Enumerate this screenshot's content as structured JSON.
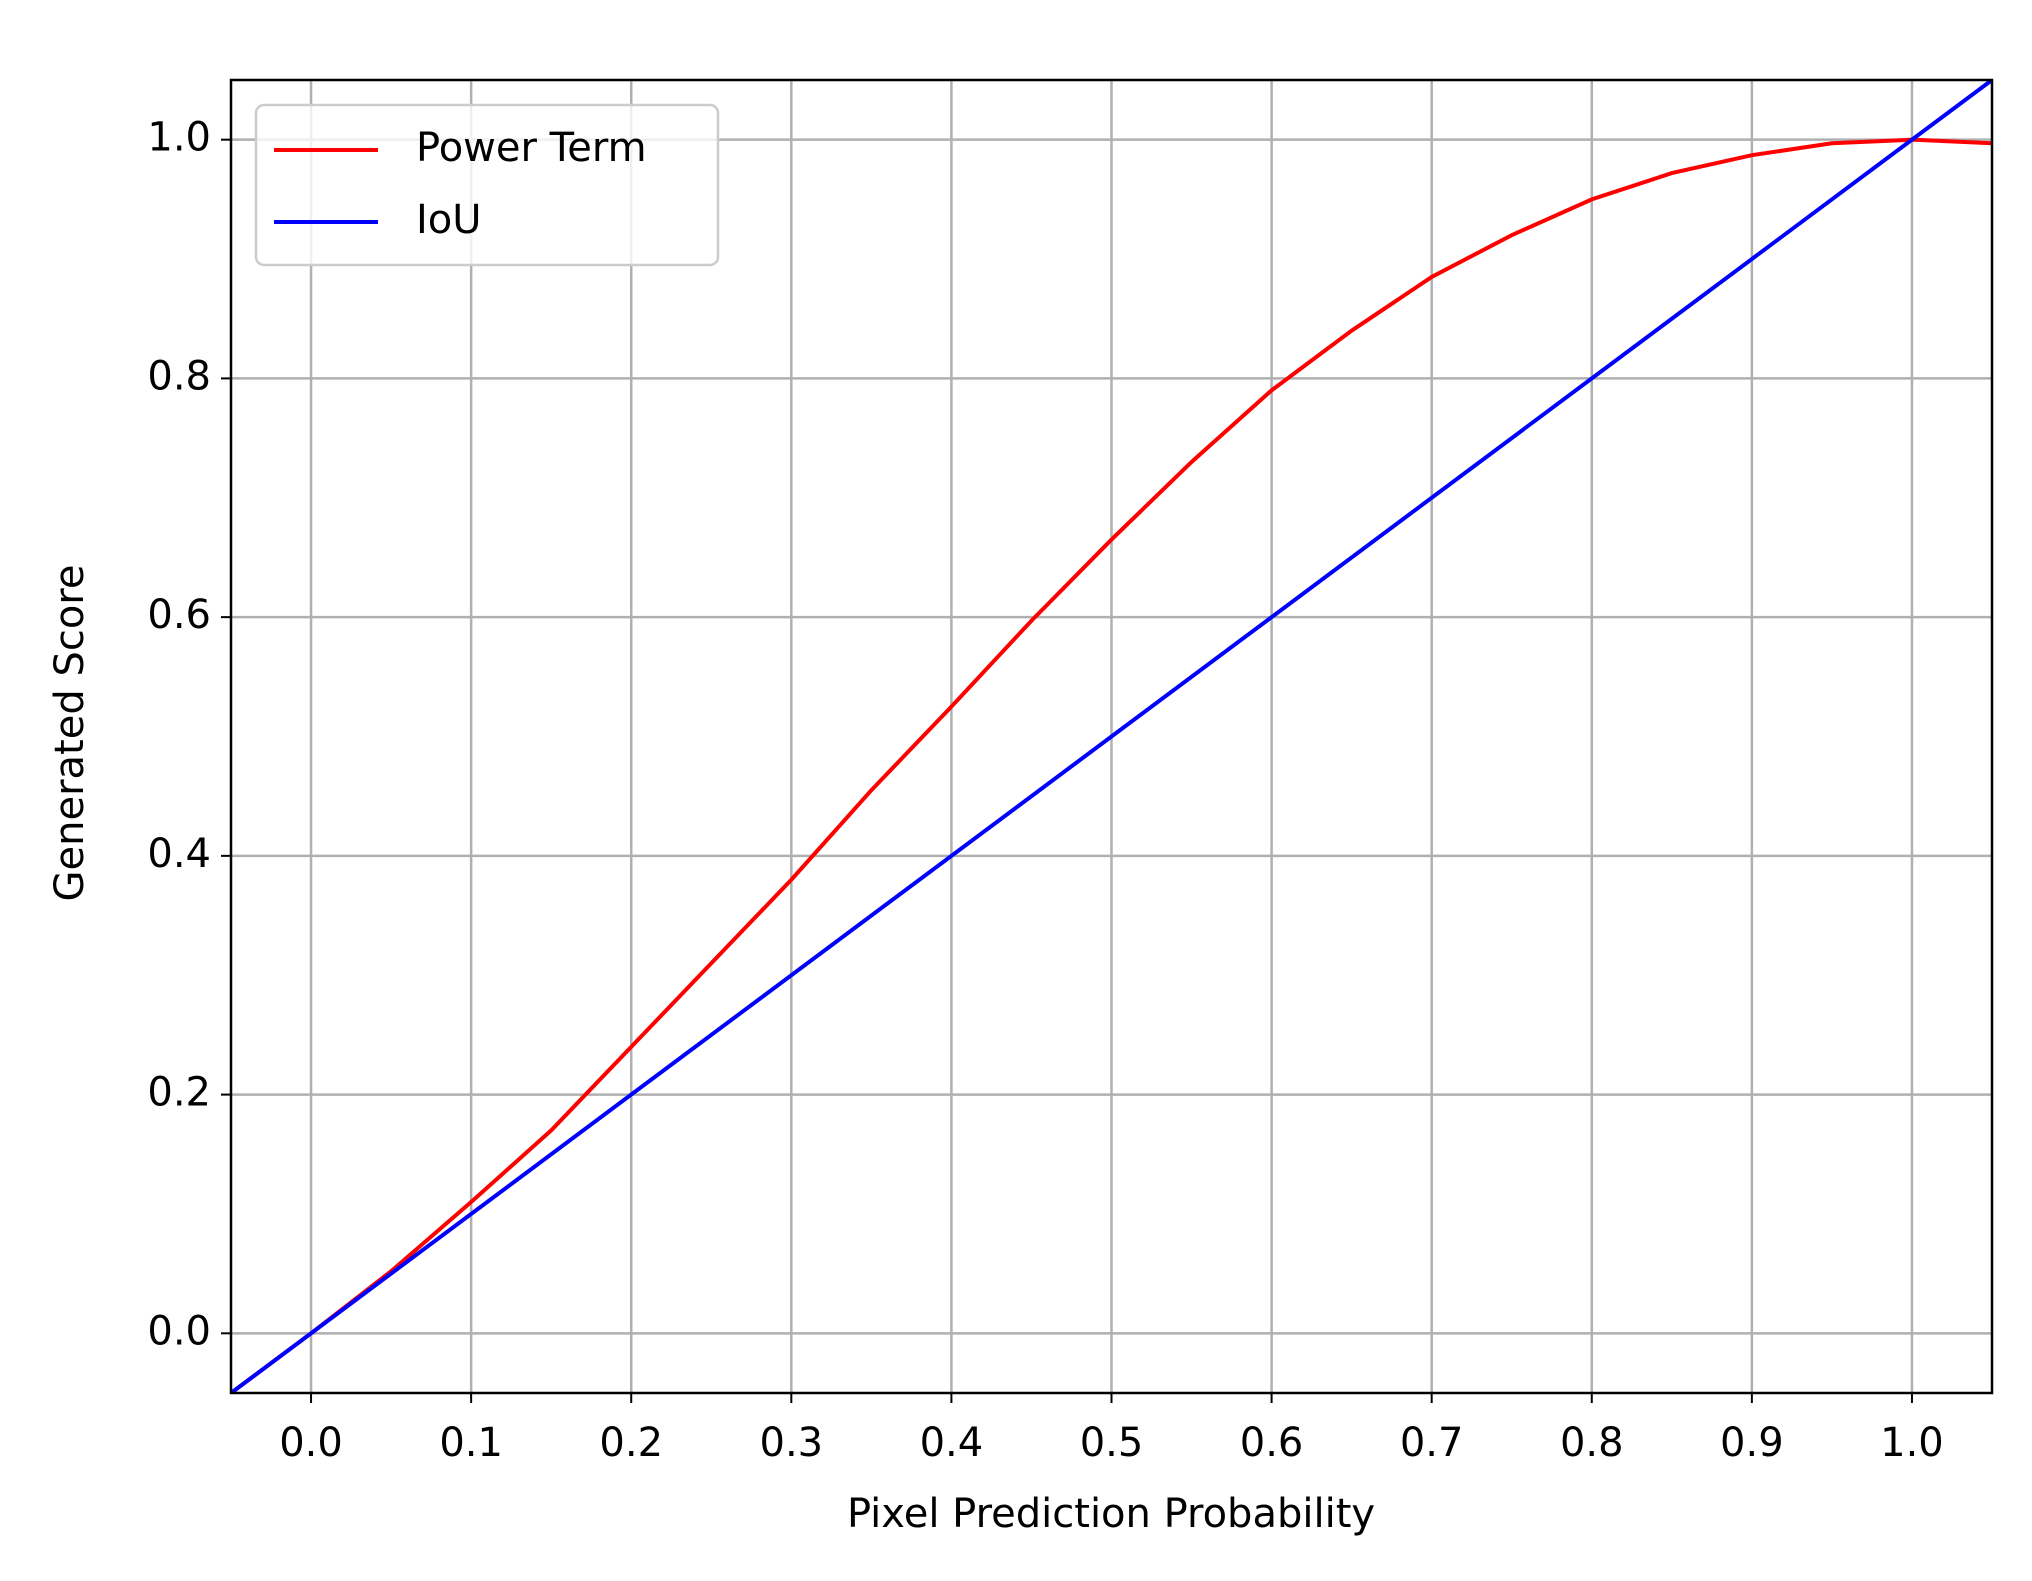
{
  "chart_data": {
    "type": "line",
    "xlabel": "Pixel Prediction Probability",
    "ylabel": "Generated Score",
    "xlim": [
      -0.05,
      1.05
    ],
    "ylim": [
      -0.05,
      1.05
    ],
    "xticks": [
      {
        "value": 0,
        "label": "0.0"
      },
      0.1,
      0.2,
      0.3,
      0.4,
      0.5,
      0.6,
      0.7,
      0.8,
      0.9,
      {
        "value": 1,
        "label": "1.0"
      }
    ],
    "yticks": [
      {
        "value": 0,
        "label": "0.0"
      },
      0.2,
      0.4,
      0.6,
      0.8,
      {
        "value": 1,
        "label": "1.0"
      }
    ],
    "grid": true,
    "legend": "upper left",
    "series": [
      {
        "name": "Power Term",
        "color": "#ff0000",
        "x": [
          -0.05,
          0,
          0.05,
          0.1,
          0.15,
          0.2,
          0.25,
          0.3,
          0.35,
          0.4,
          0.45,
          0.5,
          0.55,
          0.6,
          0.65,
          0.7,
          0.75,
          0.8,
          0.85,
          0.9,
          0.95,
          1.0,
          1.05
        ],
        "values": [
          -0.05,
          0,
          0.052,
          0.11,
          0.17,
          0.24,
          0.31,
          0.38,
          0.455,
          0.525,
          0.597,
          0.665,
          0.73,
          0.79,
          0.84,
          0.885,
          0.92,
          0.95,
          0.972,
          0.987,
          0.997,
          1.0,
          0.997
        ]
      },
      {
        "name": "IoU",
        "color": "#0000ff",
        "x": [
          -0.05,
          1.05
        ],
        "values": [
          -0.05,
          1.05
        ]
      }
    ]
  }
}
